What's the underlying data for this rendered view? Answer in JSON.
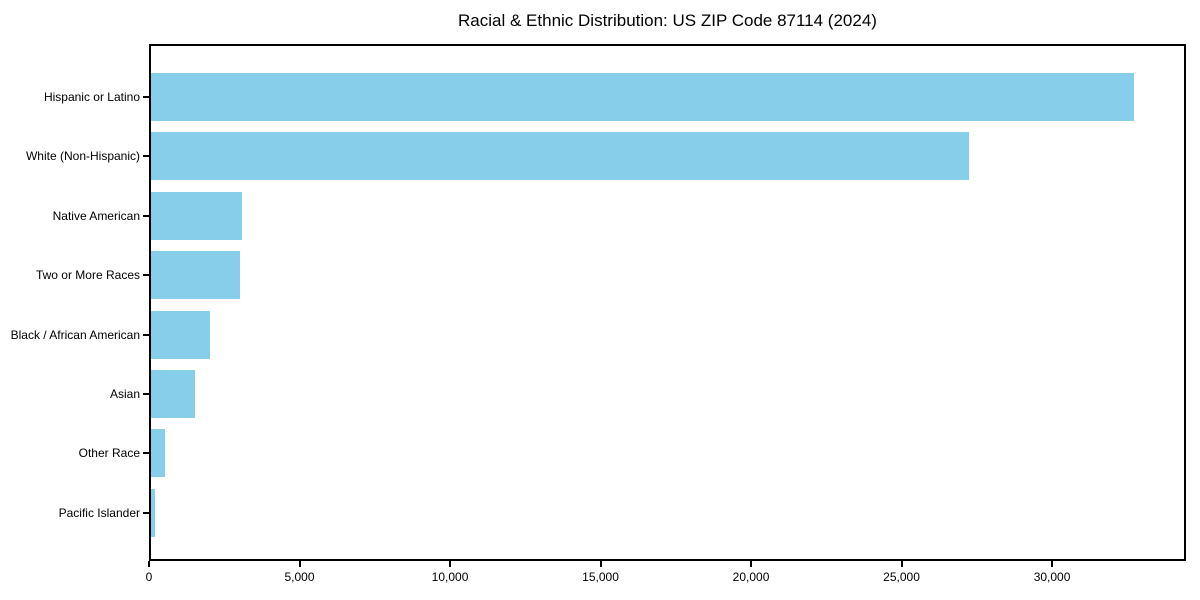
{
  "chart_data": {
    "type": "bar",
    "orientation": "horizontal",
    "title": "Racial & Ethnic Distribution: US ZIP Code 87114 (2024)",
    "categories": [
      "Hispanic or Latino",
      "White (Non-Hispanic)",
      "Native American",
      "Two or More Races",
      "Black / African American",
      "Asian",
      "Other Race",
      "Pacific Islander"
    ],
    "values": [
      32790,
      27270,
      3020,
      2960,
      1960,
      1460,
      470,
      150
    ],
    "xlabel": "",
    "ylabel": "",
    "xlim": [
      0,
      34450
    ],
    "xticks": [
      {
        "value": 0,
        "label": "0"
      },
      {
        "value": 5000,
        "label": "5,000"
      },
      {
        "value": 10000,
        "label": "10,000"
      },
      {
        "value": 15000,
        "label": "15,000"
      },
      {
        "value": 20000,
        "label": "20,000"
      },
      {
        "value": 25000,
        "label": "25,000"
      },
      {
        "value": 30000,
        "label": "30,000"
      }
    ],
    "bar_color": "#87CEEB",
    "background_color": "#ffffff",
    "axis_color": "#000000",
    "grid": false,
    "legend": null
  }
}
